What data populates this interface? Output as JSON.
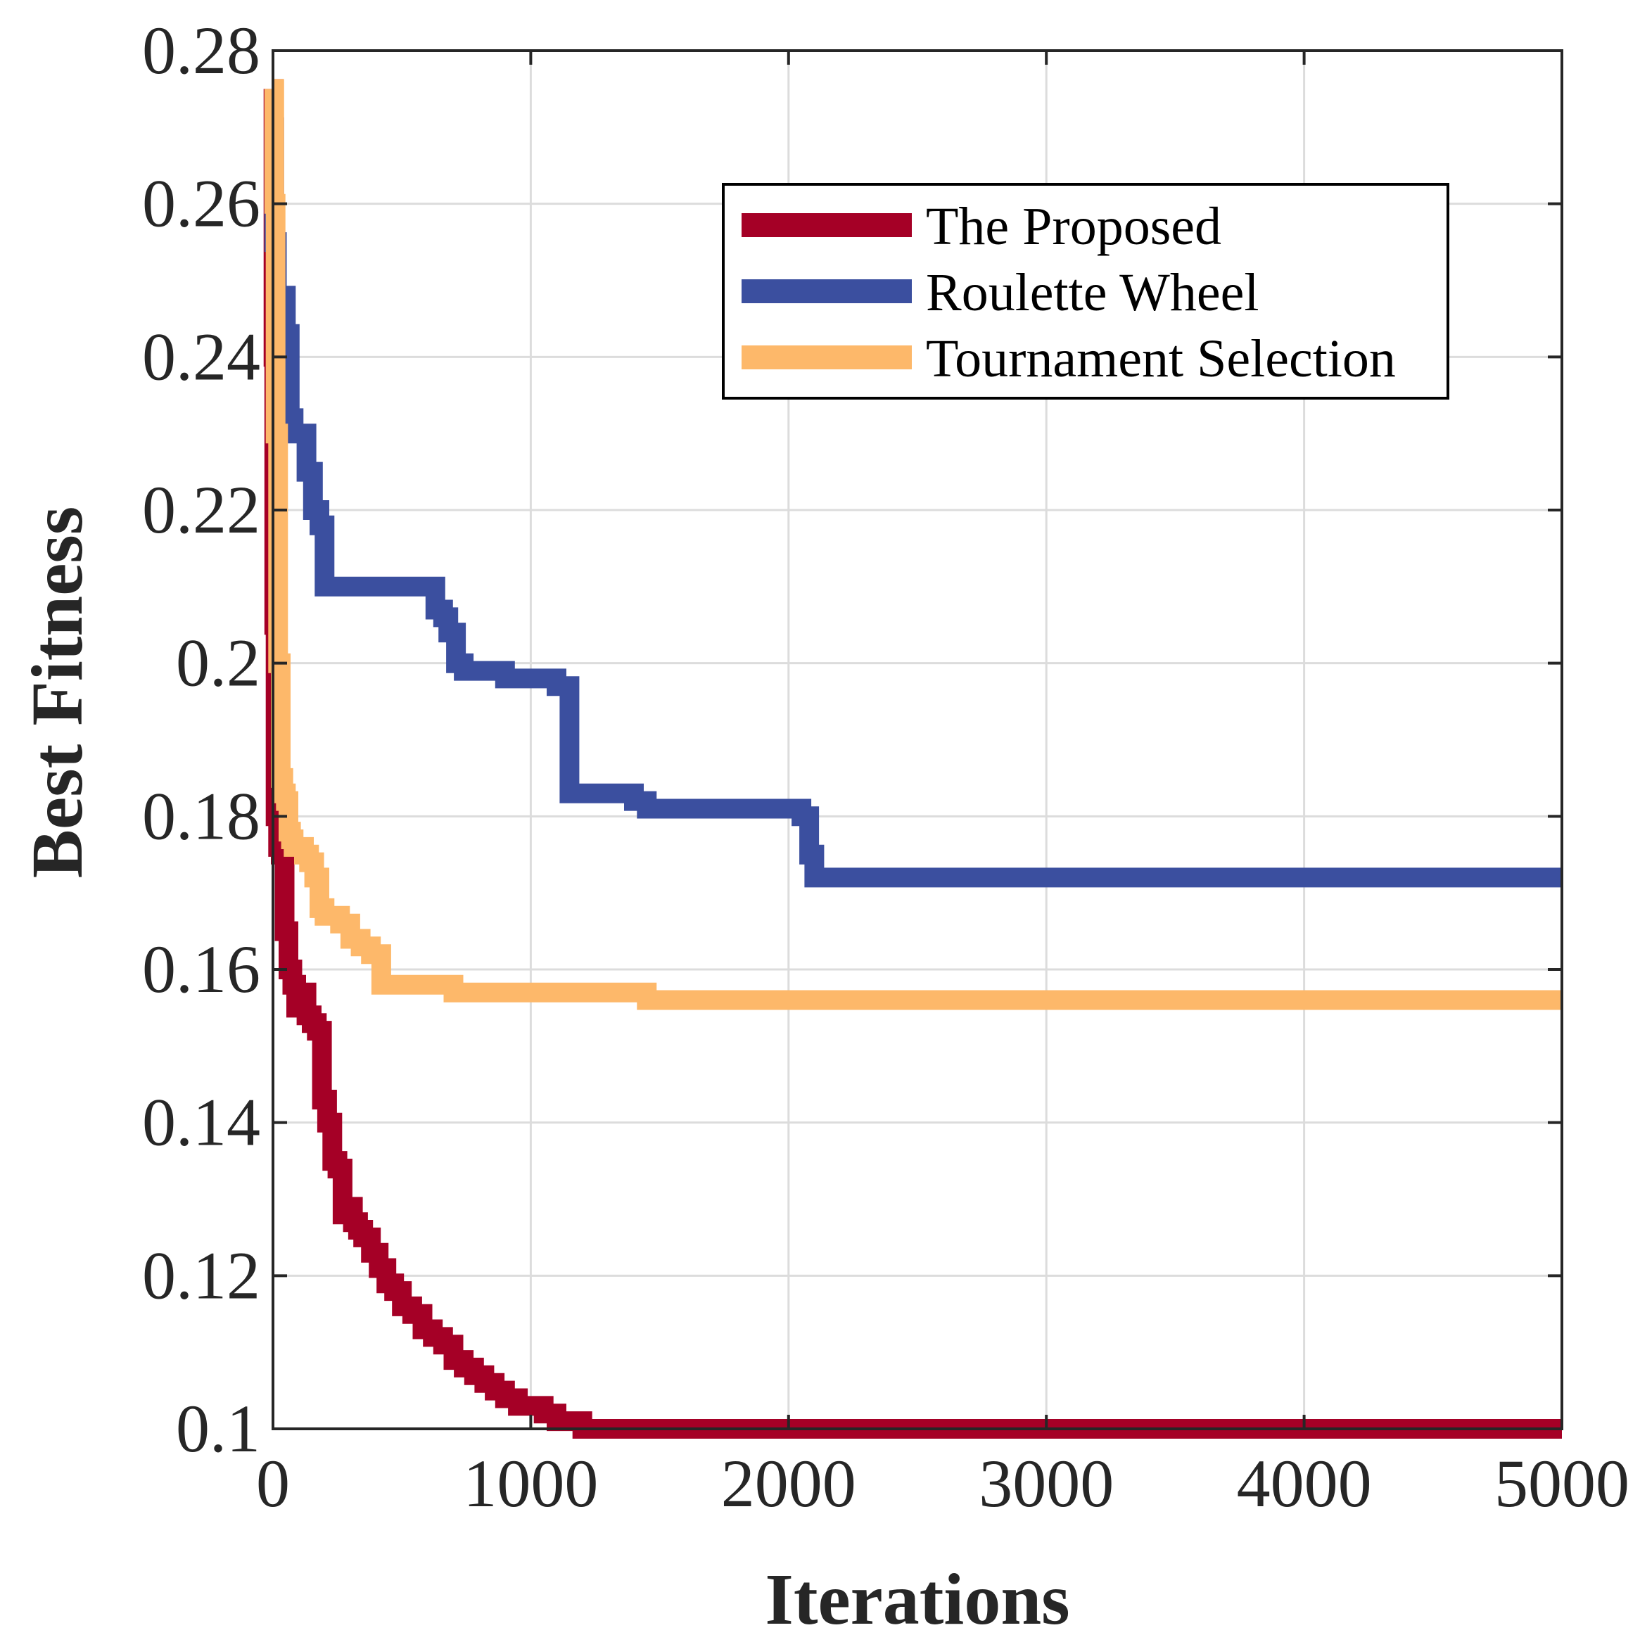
{
  "chart_data": {
    "type": "line",
    "title": "",
    "xlabel": "Iterations",
    "ylabel": "Best Fitness",
    "xlim": [
      0,
      5000
    ],
    "ylim": [
      0.1,
      0.28
    ],
    "xticks": [
      0,
      1000,
      2000,
      3000,
      4000,
      5000
    ],
    "xtick_labels": [
      "0",
      "1000",
      "2000",
      "3000",
      "4000",
      "5000"
    ],
    "yticks": [
      0.1,
      0.12,
      0.14,
      0.16,
      0.18,
      0.2,
      0.22,
      0.24,
      0.26,
      0.28
    ],
    "ytick_labels": [
      "0.1",
      "0.12",
      "0.14",
      "0.16",
      "0.18",
      "0.2",
      "0.22",
      "0.24",
      "0.26",
      "0.28"
    ],
    "grid": true,
    "legend_position": "top-right",
    "series": [
      {
        "name": "The Proposed",
        "color": "#a50026",
        "x": [
          0,
          2,
          5,
          10,
          20,
          30,
          45,
          60,
          75,
          90,
          110,
          130,
          150,
          170,
          190,
          210,
          230,
          250,
          270,
          290,
          310,
          330,
          350,
          380,
          410,
          440,
          470,
          500,
          540,
          580,
          620,
          660,
          700,
          740,
          780,
          820,
          860,
          900,
          950,
          1000,
          1050,
          1100,
          1150,
          1200,
          1250,
          5000
        ],
        "y": [
          0.275,
          0.24,
          0.205,
          0.18,
          0.176,
          0.175,
          0.165,
          0.16,
          0.158,
          0.155,
          0.157,
          0.154,
          0.153,
          0.152,
          0.143,
          0.14,
          0.135,
          0.134,
          0.128,
          0.129,
          0.127,
          0.126,
          0.125,
          0.123,
          0.121,
          0.119,
          0.118,
          0.116,
          0.115,
          0.113,
          0.112,
          0.111,
          0.109,
          0.108,
          0.107,
          0.106,
          0.105,
          0.104,
          0.103,
          0.103,
          0.102,
          0.101,
          0.101,
          0.1,
          0.1,
          0.1
        ]
      },
      {
        "name": "Roulette Wheel",
        "color": "#3b4f9f",
        "x": [
          0,
          5,
          15,
          30,
          50,
          65,
          80,
          100,
          130,
          155,
          180,
          200,
          220,
          240,
          300,
          400,
          500,
          600,
          630,
          660,
          680,
          710,
          740,
          780,
          900,
          1000,
          1050,
          1100,
          1150,
          1200,
          1300,
          1400,
          1450,
          1500,
          1700,
          2000,
          2050,
          2080,
          2100,
          2200,
          3000,
          5000
        ],
        "y": [
          0.27,
          0.255,
          0.245,
          0.248,
          0.243,
          0.232,
          0.23,
          0.23,
          0.225,
          0.22,
          0.218,
          0.21,
          0.21,
          0.21,
          0.21,
          0.21,
          0.21,
          0.21,
          0.207,
          0.206,
          0.204,
          0.2,
          0.199,
          0.199,
          0.198,
          0.198,
          0.198,
          0.197,
          0.183,
          0.183,
          0.183,
          0.182,
          0.181,
          0.181,
          0.181,
          0.181,
          0.18,
          0.175,
          0.172,
          0.172,
          0.172,
          0.172
        ]
      },
      {
        "name": "Tournament Selection",
        "color": "#fdb86a",
        "x": [
          0,
          5,
          10,
          20,
          30,
          40,
          50,
          60,
          70,
          80,
          100,
          120,
          140,
          160,
          180,
          200,
          230,
          260,
          300,
          340,
          380,
          420,
          450,
          500,
          600,
          700,
          800,
          1000,
          1200,
          1400,
          1450,
          1600,
          2000,
          3000,
          4000,
          5000
        ],
        "y": [
          0.275,
          0.26,
          0.23,
          0.2,
          0.185,
          0.183,
          0.182,
          0.178,
          0.177,
          0.176,
          0.176,
          0.175,
          0.174,
          0.172,
          0.168,
          0.167,
          0.167,
          0.166,
          0.164,
          0.163,
          0.162,
          0.158,
          0.158,
          0.158,
          0.158,
          0.157,
          0.157,
          0.157,
          0.157,
          0.157,
          0.156,
          0.156,
          0.156,
          0.156,
          0.156,
          0.156
        ]
      }
    ]
  }
}
